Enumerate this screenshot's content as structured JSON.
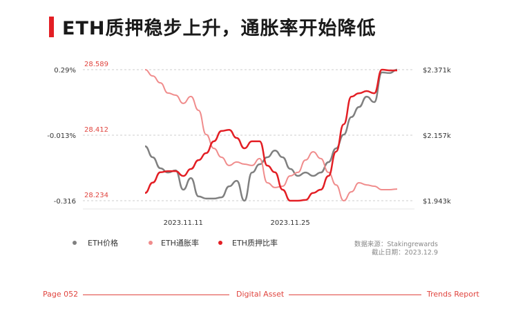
{
  "header": {
    "title": "ETH质押稳步上升，通胀率开始降低"
  },
  "chart_data": {
    "type": "line",
    "title": "",
    "x": [
      "2023.11.06",
      "2023.11.07",
      "2023.11.08",
      "2023.11.09",
      "2023.11.10",
      "2023.11.11",
      "2023.11.12",
      "2023.11.13",
      "2023.11.14",
      "2023.11.15",
      "2023.11.16",
      "2023.11.17",
      "2023.11.18",
      "2023.11.19",
      "2023.11.20",
      "2023.11.21",
      "2023.11.22",
      "2023.11.23",
      "2023.11.24",
      "2023.11.25",
      "2023.11.26",
      "2023.11.27",
      "2023.11.28",
      "2023.11.29",
      "2023.11.30",
      "2023.12.01",
      "2023.12.02",
      "2023.12.03",
      "2023.12.04",
      "2023.12.05",
      "2023.12.06",
      "2023.12.07",
      "2023.12.08",
      "2023.12.09"
    ],
    "x_ticks": [
      "2023.11.11",
      "2023.11.25"
    ],
    "left_axis": {
      "ticks": [
        "0.29%",
        "-0.013%",
        "-0.316"
      ],
      "values": [
        0.29,
        -0.013,
        -0.316
      ],
      "range": [
        -0.316,
        0.29
      ]
    },
    "left_axis2": {
      "ticks": [
        "28.589",
        "28.412",
        "28.234"
      ],
      "values": [
        28.589,
        28.412,
        28.234
      ],
      "range": [
        28.234,
        28.589
      ]
    },
    "right_axis": {
      "ticks": [
        "$2.371k",
        "$2.157k",
        "$1.943k"
      ],
      "values": [
        2371,
        2157,
        1943
      ],
      "range": [
        1943,
        2371
      ]
    },
    "grid": true,
    "legend_placement": "bottom-left",
    "series": [
      {
        "name": "ETH价格",
        "axis": "right",
        "color": "#808080",
        "values": [
          2121,
          2085,
          2049,
          2035,
          2042,
          1979,
          2017,
          1957,
          1950,
          1950,
          1954,
          1990,
          2008,
          1943,
          2035,
          2062,
          2085,
          2107,
          2085,
          2047,
          2024,
          2035,
          2024,
          2035,
          2069,
          2114,
          2159,
          2216,
          2249,
          2283,
          2265,
          2362,
          2360,
          2371
        ]
      },
      {
        "name": "ETH通胀率",
        "axis": "left",
        "color": "#f08c8c",
        "values": [
          0.29,
          0.261,
          0.229,
          0.182,
          0.172,
          0.134,
          0.166,
          0.102,
          -0.01,
          -0.074,
          -0.115,
          -0.153,
          -0.137,
          -0.147,
          -0.153,
          -0.121,
          -0.233,
          -0.255,
          -0.249,
          -0.201,
          -0.185,
          -0.128,
          -0.09,
          -0.121,
          -0.185,
          -0.243,
          -0.316,
          -0.275,
          -0.233,
          -0.243,
          -0.249,
          -0.265,
          -0.265,
          -0.262
        ]
      },
      {
        "name": "ETH质押比率",
        "axis": "left2",
        "color": "#e31e24",
        "values": [
          28.255,
          28.283,
          28.311,
          28.314,
          28.314,
          28.301,
          28.32,
          28.344,
          28.363,
          28.395,
          28.423,
          28.426,
          28.404,
          28.376,
          28.395,
          28.395,
          28.329,
          28.311,
          28.264,
          28.234,
          28.234,
          28.236,
          28.255,
          28.264,
          28.301,
          28.367,
          28.441,
          28.516,
          28.525,
          28.531,
          28.525,
          28.589,
          28.587,
          28.587
        ]
      }
    ]
  },
  "notes": {
    "source": "数据来源：Stakingrewards",
    "date": "截止日期：2023.12.9"
  },
  "footer": {
    "page": "Page 052",
    "center": "Digital Asset",
    "right": "Trends Report"
  }
}
